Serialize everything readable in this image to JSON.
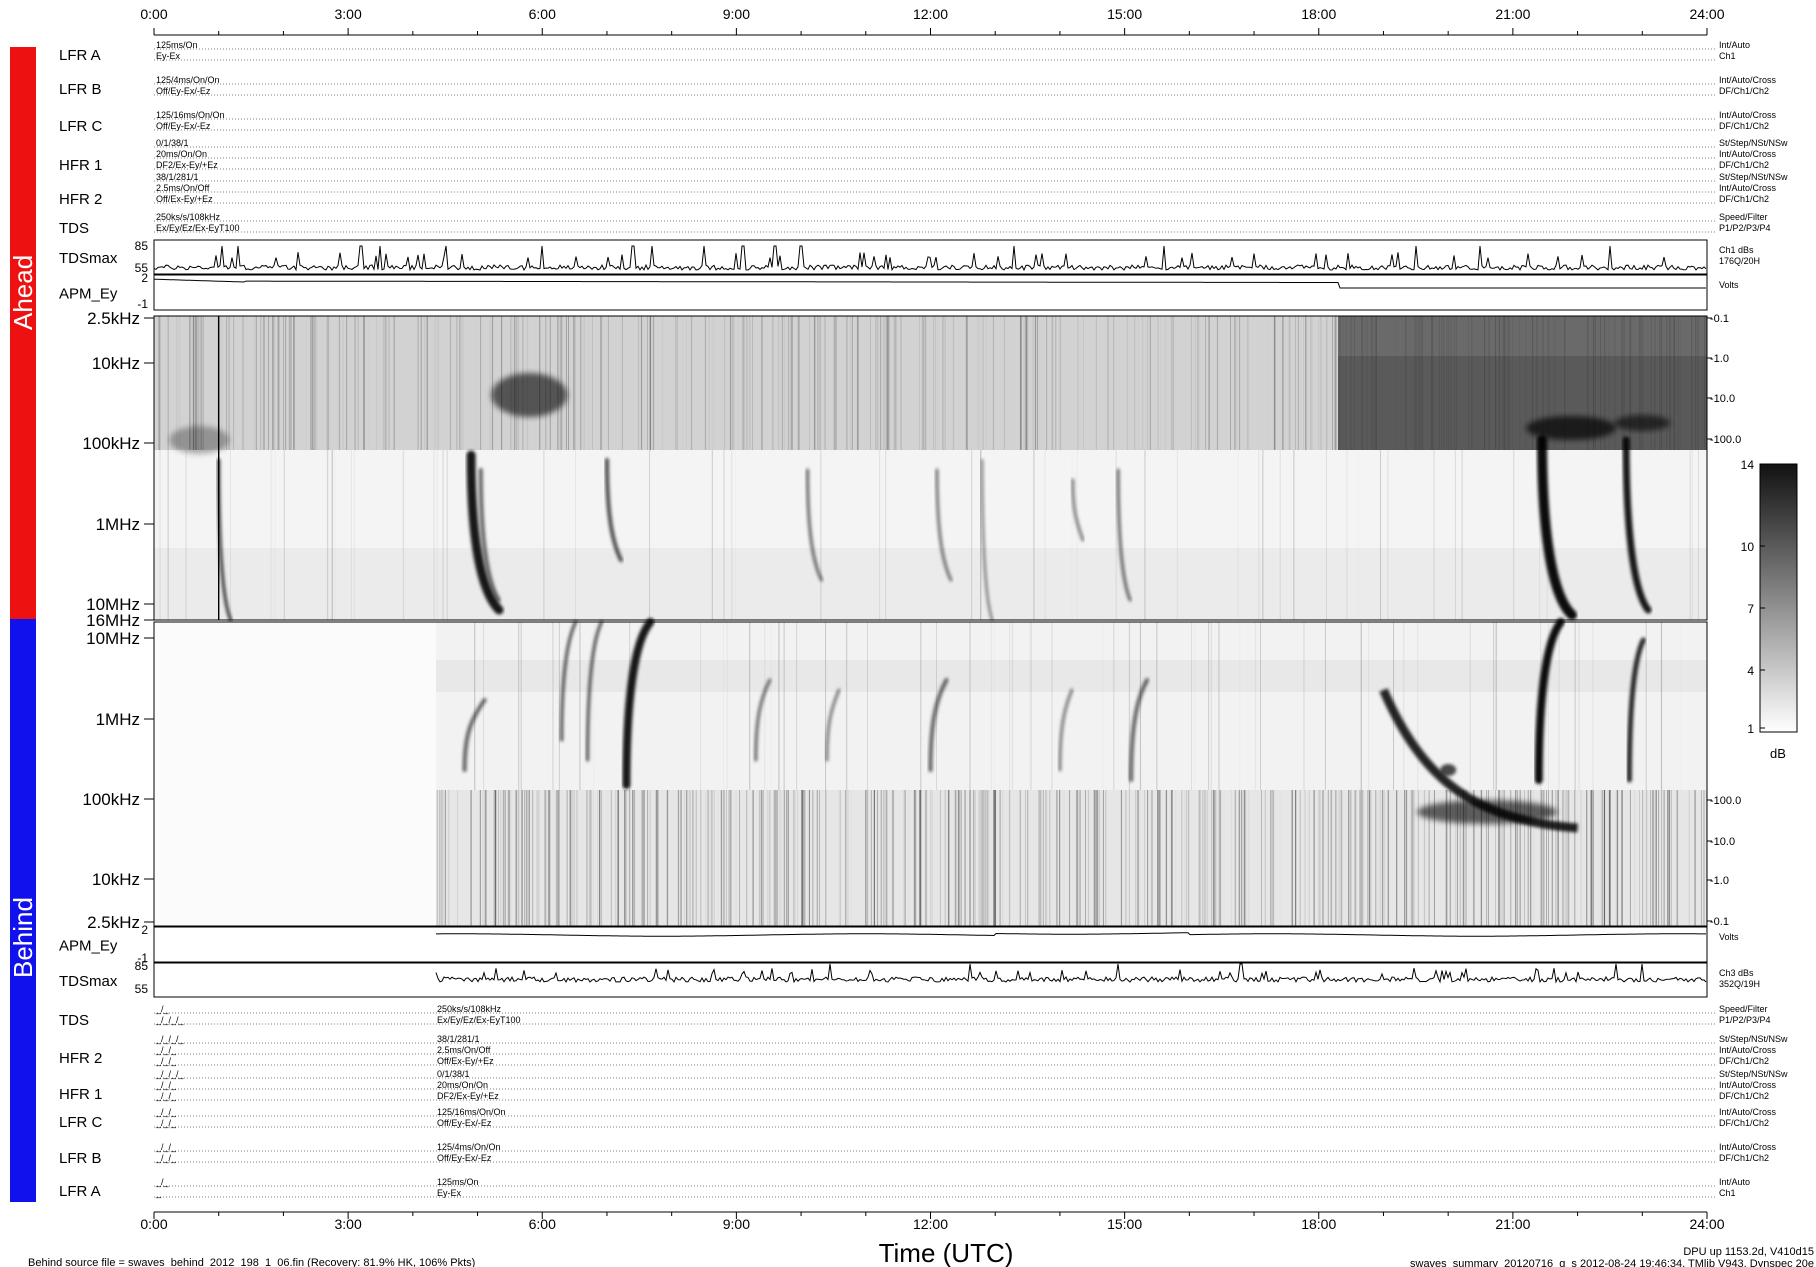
{
  "time_axis": {
    "xlabel": "Time (UTC)",
    "ticks": [
      "0:00",
      "3:00",
      "6:00",
      "9:00",
      "12:00",
      "15:00",
      "18:00",
      "21:00",
      "24:00"
    ]
  },
  "side_labels": {
    "ahead": "Ahead",
    "behind": "Behind"
  },
  "colors": {
    "ahead": "#ee1111",
    "behind": "#1111ee"
  },
  "ahead": {
    "instruments": [
      {
        "name": "LFR A",
        "left": [
          "125ms/On",
          "Ey-Ex"
        ],
        "right": [
          "Int/Auto",
          "Ch1"
        ]
      },
      {
        "name": "LFR B",
        "left": [
          "125/4ms/On/On",
          "Off/Ey-Ex/-Ez"
        ],
        "right": [
          "Int/Auto/Cross",
          "DF/Ch1/Ch2"
        ]
      },
      {
        "name": "LFR C",
        "left": [
          "125/16ms/On/On",
          "Off/Ey-Ex/-Ez"
        ],
        "right": [
          "Int/Auto/Cross",
          "DF/Ch1/Ch2"
        ]
      },
      {
        "name": "HFR 1",
        "left": [
          "0/1/38/1",
          "20ms/On/On",
          "DF2/Ex-Ey/+Ez"
        ],
        "right": [
          "St/Step/NSt/NSw",
          "Int/Auto/Cross",
          "DF/Ch1/Ch2"
        ]
      },
      {
        "name": "HFR 2",
        "left": [
          "38/1/281/1",
          "2.5ms/On/Off",
          "Off/Ex-Ey/+Ez"
        ],
        "right": [
          "St/Step/NSt/NSw",
          "Int/Auto/Cross",
          "DF/Ch1/Ch2"
        ]
      },
      {
        "name": "TDS",
        "left": [
          "250ks/s/108kHz",
          "Ex/Ey/Ez/Ex-EyT100"
        ],
        "right": [
          "Speed/Filter",
          "P1/P2/P3/P4"
        ]
      }
    ],
    "tdsmax": {
      "label": "TDSmax",
      "ticks": [
        "85",
        "55"
      ],
      "right": [
        "Ch1 dBs",
        "176Q/20H"
      ]
    },
    "apm": {
      "label": "APM_Ey",
      "ticks": [
        "2",
        "-1"
      ],
      "right": [
        "Volts"
      ]
    },
    "freq_ticks": [
      "2.5kHz",
      "10kHz",
      "100kHz",
      "1MHz",
      "10MHz",
      "16MHz"
    ],
    "right_ticks": [
      "-0.1",
      "-1.0",
      "-10.0",
      "-100.0"
    ]
  },
  "behind": {
    "instruments": [
      {
        "name": "TDS",
        "left": [
          "_/_",
          "_/_/_/_"
        ],
        "right_left": [
          "250ks/s/108kHz",
          "Ex/Ey/Ez/Ex-EyT100"
        ],
        "right": [
          "Speed/Filter",
          "P1/P2/P3/P4"
        ]
      },
      {
        "name": "HFR 2",
        "left": [
          "_/_/_/_",
          "_/_/_",
          "_/_/_"
        ],
        "right_left": [
          "38/1/281/1",
          "2.5ms/On/Off",
          "Off/Ex-Ey/+Ez"
        ],
        "right": [
          "St/Step/NSt/NSw",
          "Int/Auto/Cross",
          "DF/Ch1/Ch2"
        ]
      },
      {
        "name": "HFR 1",
        "left": [
          "_/_/_/_",
          "_/_/_",
          "_/_/_"
        ],
        "right_left": [
          "0/1/38/1",
          "20ms/On/On",
          "DF2/Ex-Ey/+Ez"
        ],
        "right": [
          "St/Step/NSt/NSw",
          "Int/Auto/Cross",
          "DF/Ch1/Ch2"
        ]
      },
      {
        "name": "LFR C",
        "left": [
          "_/_/_",
          "_/_/_"
        ],
        "right_left": [
          "125/16ms/On/On",
          "Off/Ey-Ex/-Ez"
        ],
        "right": [
          "Int/Auto/Cross",
          "DF/Ch1/Ch2"
        ]
      },
      {
        "name": "LFR B",
        "left": [
          "_/_/_",
          "_/_/_"
        ],
        "right_left": [
          "125/4ms/On/On",
          "Off/Ey-Ex/-Ez"
        ],
        "right": [
          "Int/Auto/Cross",
          "DF/Ch1/Ch2"
        ]
      },
      {
        "name": "LFR A",
        "left": [
          "_/_",
          "_"
        ],
        "right_left": [
          "125ms/On",
          "Ey-Ex"
        ],
        "right": [
          "Int/Auto",
          "Ch1"
        ]
      }
    ],
    "tdsmax": {
      "label": "TDSmax",
      "ticks": [
        "85",
        "55"
      ],
      "right": [
        "Ch3 dBs",
        "352Q/19H"
      ]
    },
    "apm": {
      "label": "APM_Ey",
      "ticks": [
        "2",
        "-1"
      ],
      "right": [
        "Volts"
      ]
    },
    "freq_ticks": [
      "10MHz",
      "1MHz",
      "100kHz",
      "10kHz",
      "2.5kHz"
    ],
    "right_ticks": [
      "-100.0",
      "-10.0",
      "-1.0",
      "-0.1"
    ]
  },
  "colorbar": {
    "ticks": [
      "14",
      "10",
      "7",
      "4",
      "1"
    ],
    "unit": "dB"
  },
  "footer": {
    "left": "Behind source file = swaves_behind_2012_198_1_06.fin (Recovery: 81.9% HK, 106% Pkts)",
    "right_top": "DPU up 1153.2d, V410d15",
    "right_bottom": "swaves_summary_20120716_g_s 2012-08-24 19:46:34, TMlib V943, Dynspec 20e"
  },
  "chart_data": {
    "type": "heatmap",
    "title": "",
    "xlabel": "Time (UTC)",
    "xlim": [
      0,
      24
    ],
    "x_ticks": [
      "0:00",
      "3:00",
      "6:00",
      "9:00",
      "12:00",
      "15:00",
      "18:00",
      "21:00",
      "24:00"
    ],
    "panels": [
      {
        "name": "Ahead",
        "y_ticks": [
          "2.5kHz",
          "10kHz",
          "100kHz",
          "1MHz",
          "10MHz",
          "16MHz"
        ],
        "y_scale": "log"
      },
      {
        "name": "Behind",
        "y_ticks": [
          "10MHz",
          "1MHz",
          "100kHz",
          "10kHz",
          "2.5kHz"
        ],
        "y_scale": "log",
        "data_gap_hours": [
          0,
          4.35
        ]
      }
    ],
    "colorbar": {
      "unit": "dB",
      "range": [
        1,
        14
      ],
      "ticks": [
        14,
        10,
        7,
        4,
        1
      ]
    },
    "ahead_bursts_hours": [
      1.0,
      4.9,
      5.0,
      7.0,
      10.1,
      12.1,
      12.8,
      14.2,
      14.9,
      21.4,
      22.8
    ],
    "behind_bursts_hours": [
      4.8,
      6.3,
      6.7,
      7.3,
      9.3,
      10.4,
      12.0,
      14.0,
      15.1,
      19.0,
      20.5,
      21.4,
      22.8
    ]
  }
}
